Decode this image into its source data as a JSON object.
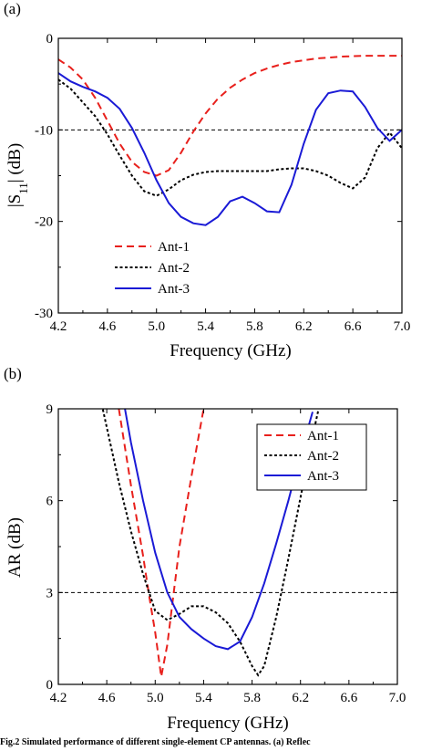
{
  "caption": "Fig.2  Simulated performance of different single-element CP antennas. (a) Reflec",
  "chart_data": [
    {
      "panel_label": "(a)",
      "type": "line",
      "title": "",
      "xlabel": "Frequency (GHz)",
      "ylabel_main": "|S",
      "ylabel_sub": "11",
      "ylabel_tail": "| (dB)",
      "xlim": [
        4.2,
        7.0
      ],
      "ylim": [
        -30,
        0
      ],
      "xticks": [
        "4.2",
        "4.6",
        "5.0",
        "5.4",
        "5.8",
        "6.2",
        "6.6",
        "7.0"
      ],
      "yticks": [
        "0",
        "-10",
        "-20",
        "-30"
      ],
      "grid": false,
      "legend_position": "bottom-left",
      "reference_line": -10,
      "series": [
        {
          "name": "Ant-1",
          "color": "#e8201c",
          "dash": "dashed",
          "x": [
            4.2,
            4.3,
            4.4,
            4.5,
            4.6,
            4.7,
            4.8,
            4.9,
            5.0,
            5.1,
            5.2,
            5.3,
            5.4,
            5.5,
            5.6,
            5.7,
            5.8,
            5.9,
            6.0,
            6.1,
            6.2,
            6.3,
            6.4,
            6.5,
            6.6,
            6.7,
            6.8,
            6.9,
            7.0
          ],
          "y": [
            -2.3,
            -3.2,
            -4.5,
            -6.5,
            -9.0,
            -11.5,
            -13.5,
            -14.6,
            -15.0,
            -14.4,
            -12.5,
            -10.2,
            -8.2,
            -6.6,
            -5.4,
            -4.5,
            -3.8,
            -3.3,
            -2.9,
            -2.6,
            -2.4,
            -2.2,
            -2.1,
            -2.0,
            -1.95,
            -1.9,
            -1.9,
            -1.9,
            -1.9
          ]
        },
        {
          "name": "Ant-2",
          "color": "#000000",
          "dash": "dotted",
          "x": [
            4.2,
            4.3,
            4.4,
            4.5,
            4.6,
            4.7,
            4.8,
            4.9,
            5.0,
            5.1,
            5.2,
            5.3,
            5.4,
            5.5,
            5.6,
            5.7,
            5.8,
            5.9,
            6.0,
            6.1,
            6.2,
            6.3,
            6.4,
            6.5,
            6.6,
            6.7,
            6.8,
            6.9,
            7.0
          ],
          "y": [
            -4.5,
            -5.5,
            -7.0,
            -8.5,
            -10.5,
            -12.8,
            -15.0,
            -16.7,
            -17.2,
            -16.5,
            -15.5,
            -14.9,
            -14.6,
            -14.5,
            -14.5,
            -14.5,
            -14.5,
            -14.5,
            -14.3,
            -14.2,
            -14.2,
            -14.5,
            -15.0,
            -15.8,
            -16.4,
            -15.2,
            -12.0,
            -10.3,
            -12.0
          ]
        },
        {
          "name": "Ant-3",
          "color": "#1a1ad6",
          "dash": "solid",
          "x": [
            4.2,
            4.3,
            4.4,
            4.5,
            4.6,
            4.7,
            4.8,
            4.9,
            5.0,
            5.1,
            5.2,
            5.3,
            5.4,
            5.5,
            5.6,
            5.7,
            5.8,
            5.9,
            6.0,
            6.1,
            6.2,
            6.3,
            6.4,
            6.5,
            6.6,
            6.7,
            6.8,
            6.9,
            7.0
          ],
          "y": [
            -3.8,
            -4.7,
            -5.3,
            -5.8,
            -6.5,
            -7.7,
            -9.8,
            -12.5,
            -15.5,
            -18.0,
            -19.5,
            -20.2,
            -20.4,
            -19.5,
            -17.8,
            -17.3,
            -18.0,
            -18.9,
            -19.0,
            -16.0,
            -11.5,
            -7.8,
            -6.0,
            -5.7,
            -5.8,
            -7.5,
            -9.8,
            -11.2,
            -10.0
          ]
        }
      ]
    },
    {
      "panel_label": "(b)",
      "type": "line",
      "title": "",
      "xlabel": "Frequency (GHz)",
      "ylabel": "AR (dB)",
      "xlim": [
        4.2,
        7.0
      ],
      "ylim": [
        0,
        9
      ],
      "xticks": [
        "4.2",
        "4.6",
        "5.0",
        "5.4",
        "5.8",
        "6.2",
        "6.6",
        "7.0"
      ],
      "yticks": [
        "9",
        "6",
        "3",
        "0"
      ],
      "grid": false,
      "legend_position": "top-right",
      "reference_line": 3,
      "series": [
        {
          "name": "Ant-1",
          "color": "#e8201c",
          "dash": "dashed",
          "x": [
            4.7,
            4.8,
            4.9,
            4.95,
            5.0,
            5.05,
            5.1,
            5.15,
            5.2,
            5.3,
            5.4
          ],
          "y": [
            9.0,
            6.5,
            4.2,
            2.9,
            1.7,
            0.25,
            1.3,
            2.9,
            4.5,
            6.8,
            9.0
          ]
        },
        {
          "name": "Ant-2",
          "color": "#000000",
          "dash": "dotted",
          "x": [
            4.55,
            4.6,
            4.7,
            4.8,
            4.9,
            5.0,
            5.1,
            5.2,
            5.3,
            5.4,
            5.5,
            5.6,
            5.7,
            5.8,
            5.85,
            5.9,
            6.0,
            6.1,
            6.2,
            6.3,
            6.35
          ],
          "y": [
            9.3,
            8.4,
            6.6,
            5.0,
            3.6,
            2.4,
            2.1,
            2.3,
            2.55,
            2.55,
            2.35,
            2.0,
            1.4,
            0.6,
            0.3,
            0.6,
            2.2,
            4.1,
            6.1,
            8.1,
            9.0
          ]
        },
        {
          "name": "Ant-3",
          "color": "#1a1ad6",
          "dash": "solid",
          "x": [
            4.75,
            4.8,
            4.9,
            5.0,
            5.1,
            5.2,
            5.3,
            5.4,
            5.5,
            5.6,
            5.7,
            5.8,
            5.9,
            6.0,
            6.1,
            6.2,
            6.3
          ],
          "y": [
            9.0,
            7.9,
            6.0,
            4.3,
            3.0,
            2.2,
            1.8,
            1.5,
            1.25,
            1.15,
            1.4,
            2.2,
            3.3,
            4.6,
            6.0,
            7.5,
            8.9
          ]
        }
      ]
    }
  ]
}
